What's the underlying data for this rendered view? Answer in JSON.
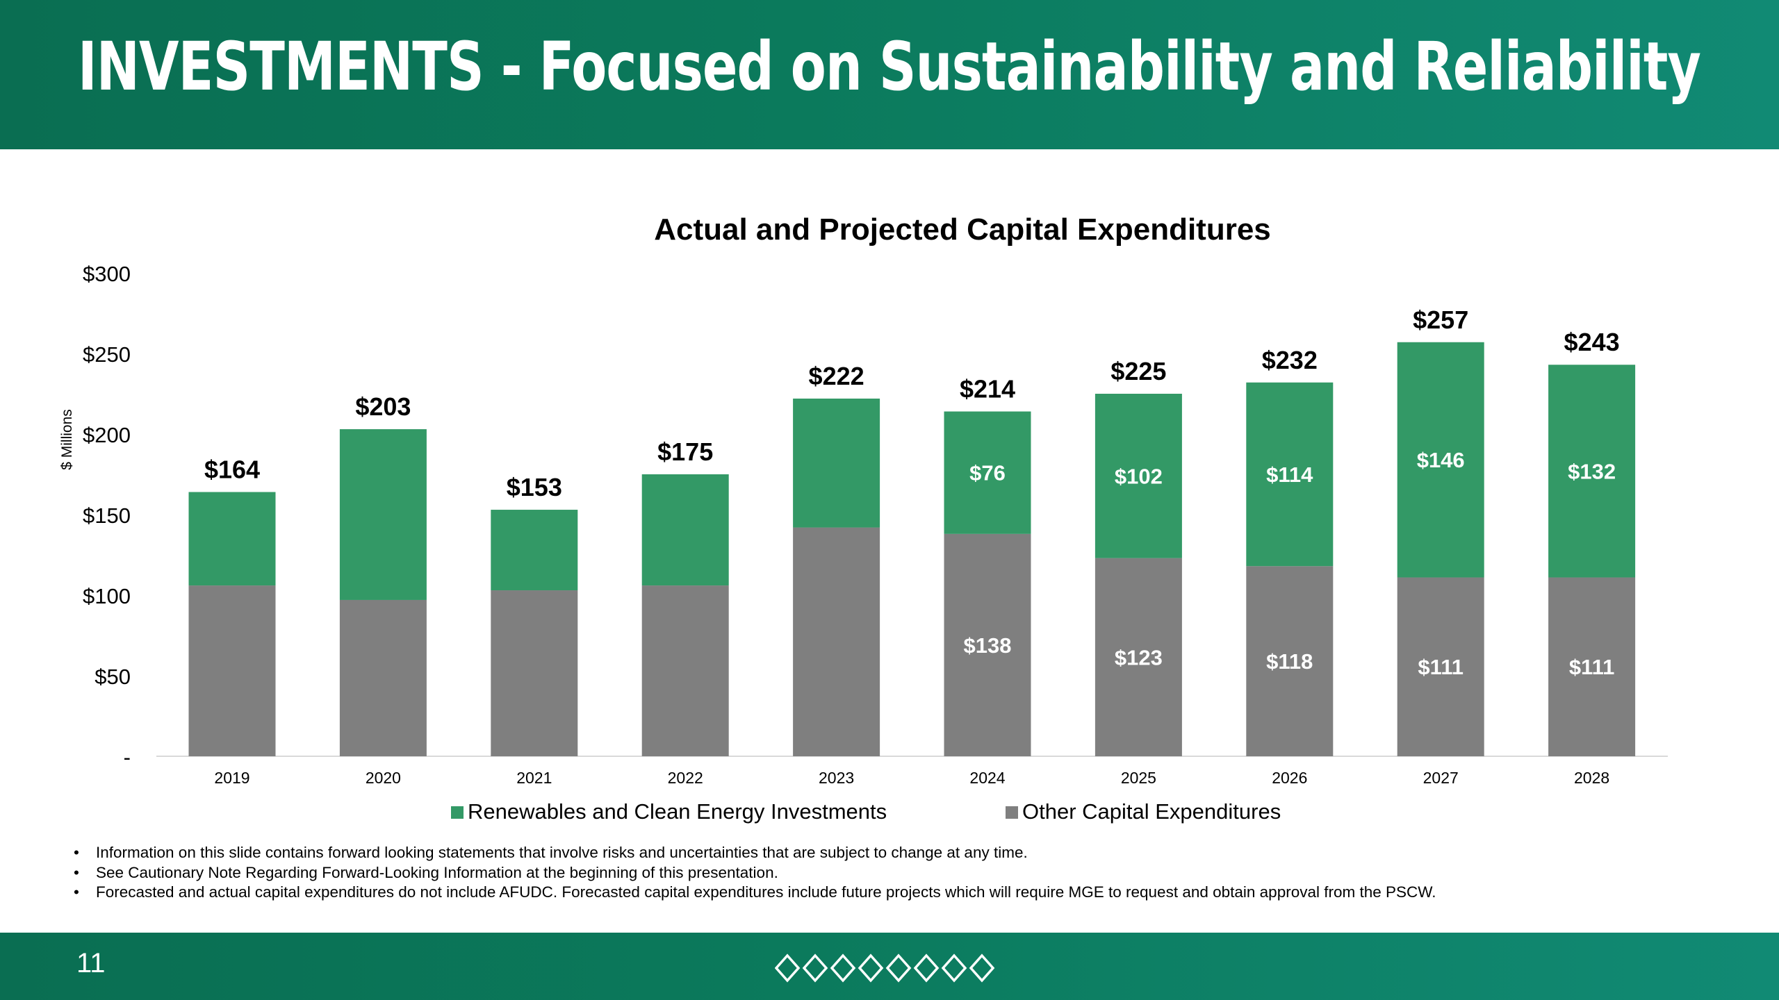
{
  "page": {
    "title": "INVESTMENTS - Focused on Sustainability and Reliability",
    "page_number": "11",
    "notes": [
      "Information on this slide contains forward looking statements that involve risks and uncertainties that are subject to change at any time.",
      "See Cautionary Note Regarding Forward-Looking Information at the beginning of this presentation.",
      "Forecasted and actual capital expenditures do not include AFUDC. Forecasted capital expenditures include future projects which will require MGE to request and obtain approval from the PSCW."
    ]
  },
  "chart_data": {
    "type": "bar",
    "stacked": true,
    "title": "Actual and Projected Capital Expenditures",
    "ylabel": "$ Millions",
    "xlabel": "",
    "ylim": [
      0,
      300
    ],
    "yticks": [
      {
        "value": 0,
        "label": "-"
      },
      {
        "value": 50,
        "label": "$50"
      },
      {
        "value": 100,
        "label": "$100"
      },
      {
        "value": 150,
        "label": "$150"
      },
      {
        "value": 200,
        "label": "$200"
      },
      {
        "value": 250,
        "label": "$250"
      },
      {
        "value": 300,
        "label": "$300"
      }
    ],
    "categories": [
      "2019",
      "2020",
      "2021",
      "2022",
      "2023",
      "2024",
      "2025",
      "2026",
      "2027",
      "2028"
    ],
    "series": [
      {
        "name": "Other Capital Expenditures",
        "color": "#7f7f7f",
        "values": [
          106,
          97,
          103,
          106,
          142,
          138,
          123,
          118,
          111,
          111
        ],
        "labels": [
          "",
          "",
          "",
          "",
          "",
          "$138",
          "$123",
          "$118",
          "$111",
          "$111"
        ]
      },
      {
        "name": "Renewables and Clean Energy Investments",
        "color": "#339966",
        "values": [
          58,
          106,
          50,
          69,
          80,
          76,
          102,
          114,
          146,
          132
        ],
        "labels": [
          "",
          "",
          "",
          "",
          "",
          "$76",
          "$102",
          "$114",
          "$146",
          "$132"
        ]
      }
    ],
    "totals": [
      164,
      203,
      153,
      175,
      222,
      214,
      225,
      232,
      257,
      243
    ],
    "total_labels": [
      "$164",
      "$203",
      "$153",
      "$175",
      "$222",
      "$214",
      "$225",
      "$232",
      "$257",
      "$243"
    ],
    "legend": [
      {
        "name": "Renewables and Clean Energy Investments",
        "color": "#339966"
      },
      {
        "name": "Other Capital Expenditures",
        "color": "#7f7f7f"
      }
    ],
    "legend_position": "bottom",
    "grid": false
  },
  "colors": {
    "brand": "#0b7a5c",
    "renewables": "#339966",
    "other": "#7f7f7f"
  }
}
